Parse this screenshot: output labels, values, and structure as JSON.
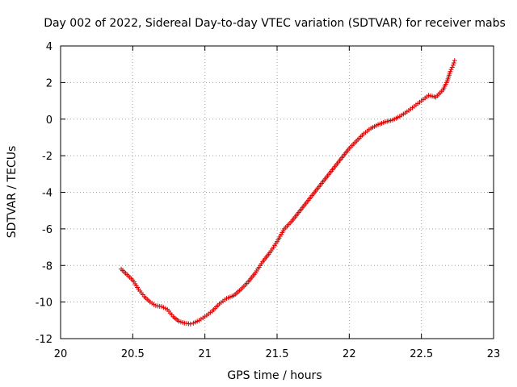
{
  "chart_data": {
    "type": "scatter",
    "title": "Day 002 of 2022, Sidereal Day-to-day VTEC variation (SDTVAR) for receiver mabs",
    "xlabel": "GPS time / hours",
    "ylabel": "SDTVAR / TECUs",
    "xlim": [
      20,
      23
    ],
    "ylim": [
      -12,
      4
    ],
    "grid": true,
    "marker": "+",
    "color": "#e00000",
    "x_ticks": [
      "20",
      "20.5",
      "21",
      "21.5",
      "22",
      "22.5",
      "23"
    ],
    "y_ticks": [
      "4",
      "2",
      "0",
      "-2",
      "-4",
      "-6",
      "-8",
      "-10",
      "-12"
    ],
    "series": [
      {
        "name": "mabs",
        "x": [
          20.42,
          20.46,
          20.5,
          20.54,
          20.58,
          20.62,
          20.66,
          20.7,
          20.74,
          20.78,
          20.82,
          20.86,
          20.9,
          20.92,
          20.96,
          21.0,
          21.05,
          21.1,
          21.15,
          21.2,
          21.25,
          21.3,
          21.35,
          21.4,
          21.45,
          21.5,
          21.55,
          21.6,
          21.65,
          21.7,
          21.75,
          21.8,
          21.85,
          21.9,
          21.95,
          22.0,
          22.05,
          22.1,
          22.15,
          22.2,
          22.25,
          22.3,
          22.35,
          22.4,
          22.45,
          22.5,
          22.55,
          22.6,
          22.65,
          22.68,
          22.7,
          22.72,
          22.73
        ],
        "y": [
          -8.2,
          -8.5,
          -8.8,
          -9.3,
          -9.7,
          -10.0,
          -10.2,
          -10.25,
          -10.4,
          -10.8,
          -11.05,
          -11.15,
          -11.2,
          -11.15,
          -11.0,
          -10.8,
          -10.5,
          -10.1,
          -9.8,
          -9.65,
          -9.3,
          -8.9,
          -8.4,
          -7.8,
          -7.3,
          -6.7,
          -6.0,
          -5.6,
          -5.1,
          -4.6,
          -4.1,
          -3.6,
          -3.1,
          -2.6,
          -2.1,
          -1.6,
          -1.2,
          -0.8,
          -0.5,
          -0.3,
          -0.15,
          -0.05,
          0.15,
          0.4,
          0.7,
          1.0,
          1.3,
          1.2,
          1.6,
          2.1,
          2.6,
          2.95,
          3.2
        ]
      }
    ]
  }
}
